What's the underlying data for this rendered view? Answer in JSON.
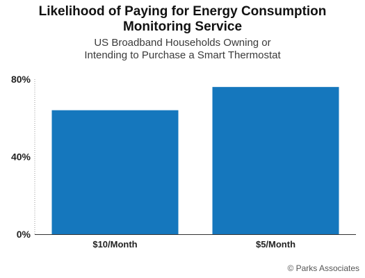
{
  "chart_data": {
    "type": "bar",
    "title_lines": [
      "Likelihood of Paying for Energy Consumption",
      "Monitoring Service"
    ],
    "subtitle_lines": [
      "US Broadband Households Owning or",
      "Intending to Purchase a Smart Thermostat"
    ],
    "categories": [
      "$10/Month",
      "$5/Month"
    ],
    "values": [
      64,
      76
    ],
    "ylim": [
      0,
      80
    ],
    "yticks": [
      0,
      40,
      80
    ],
    "ytick_labels": [
      "0%",
      "40%",
      "80%"
    ],
    "bar_color": "#1577bd",
    "grid": false,
    "legend": "none"
  },
  "source": "© Parks Associates"
}
